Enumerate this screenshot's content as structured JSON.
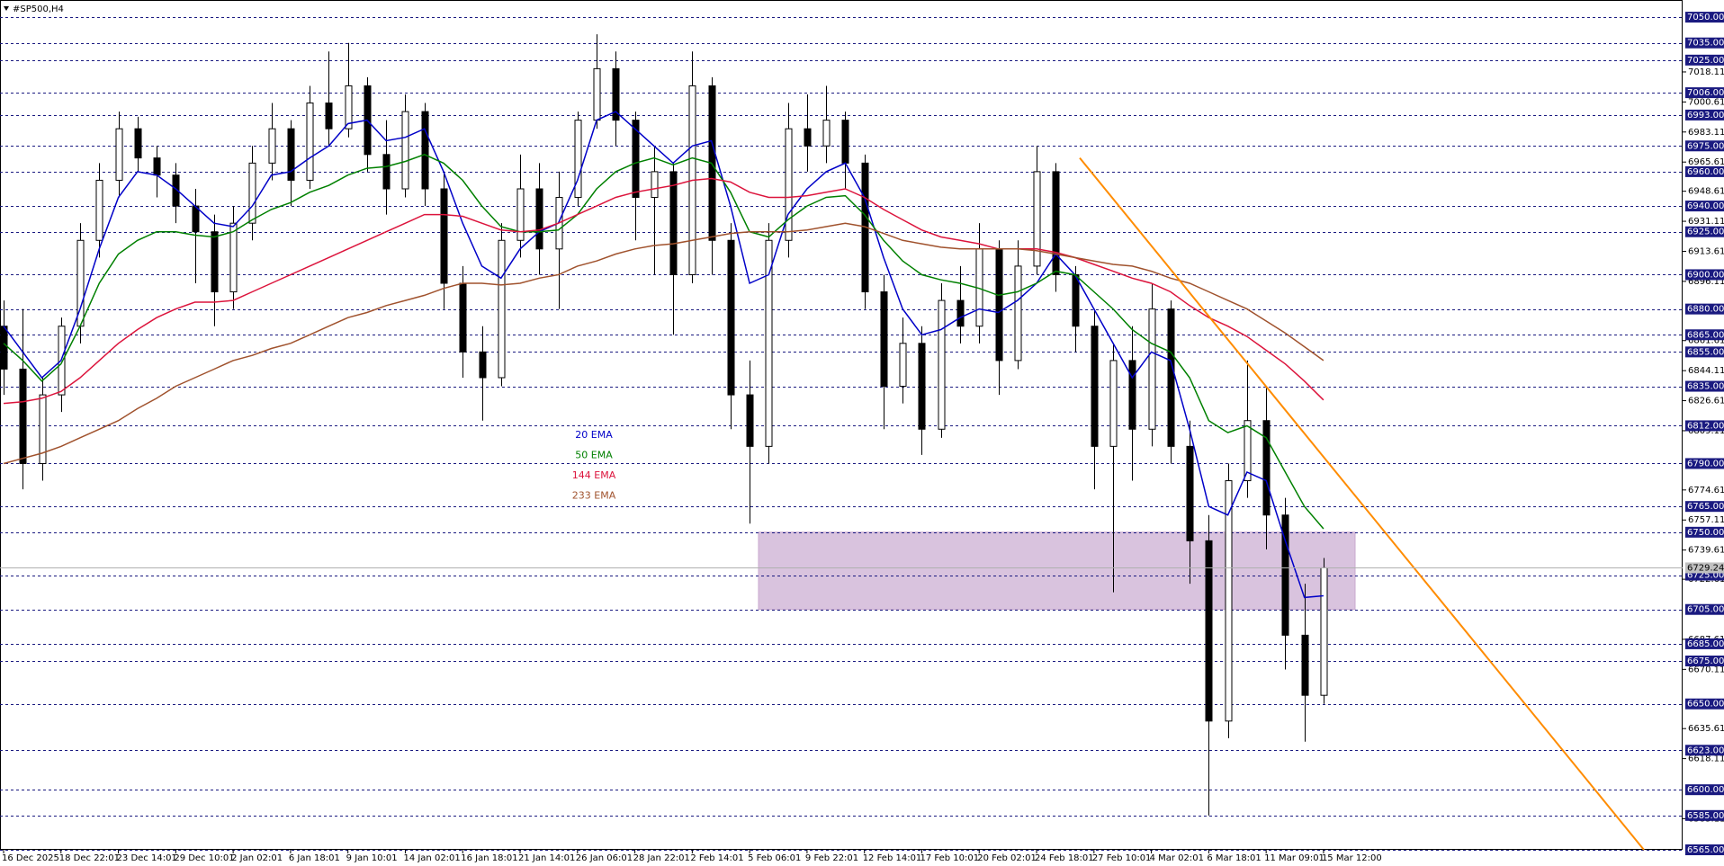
{
  "chart_data": {
    "type": "candlestick",
    "title": "#SP500,H4",
    "categories": [
      "16 Dec 2025",
      null,
      null,
      "18 Dec 22:01",
      null,
      null,
      "23 Dec 14:01",
      null,
      null,
      "29 Dec 10:01",
      null,
      null,
      "2 Jan 02:01",
      null,
      null,
      "6 Jan 18:01",
      null,
      null,
      "9 Jan 10:01",
      null,
      null,
      "14 Jan 02:01",
      null,
      null,
      "16 Jan 18:01",
      null,
      null,
      "21 Jan 14:01",
      null,
      null,
      "26 Jan 06:01",
      null,
      null,
      "28 Jan 22:01",
      null,
      null,
      "2 Feb 14:01",
      null,
      null,
      "5 Feb 06:01",
      null,
      null,
      "9 Feb 22:01",
      null,
      null,
      "12 Feb 14:01",
      null,
      null,
      "17 Feb 10:01",
      null,
      null,
      "20 Feb 02:01",
      null,
      null,
      "24 Feb 18:01",
      null,
      null,
      "27 Feb 10:01",
      null,
      null,
      "4 Mar 02:01",
      null,
      null,
      "6 Mar 18:01",
      null,
      null,
      "11 Mar 09:01",
      null,
      null,
      "15 Mar 12:00"
    ],
    "candles": {
      "open": [
        6870,
        6845,
        6790,
        6830,
        6870,
        6920,
        6955,
        6985,
        6968,
        6958,
        6940,
        6925,
        6890,
        6930,
        6965,
        6985,
        6955,
        7000,
        6985,
        7010,
        6970,
        6950,
        6995,
        6950,
        6895,
        6855,
        6840,
        6920,
        6950,
        6915,
        6945,
        6990,
        7020,
        6990,
        6945,
        6960,
        6900,
        7010,
        6920,
        6830,
        6800,
        6920,
        6985,
        6975,
        6990,
        6965,
        6890,
        6835,
        6860,
        6810,
        6885,
        6870,
        6915,
        6850,
        6905,
        6960,
        6900,
        6870,
        6800,
        6850,
        6810,
        6880,
        6800,
        6745,
        6640,
        6780,
        6815,
        6760,
        6690,
        6655
      ],
      "high": [
        6885,
        6880,
        6840,
        6875,
        6930,
        6965,
        6995,
        6992,
        6975,
        6965,
        6950,
        6935,
        6940,
        6975,
        7000,
        6990,
        7010,
        7030,
        7035,
        7015,
        6990,
        7005,
        7000,
        6960,
        6905,
        6870,
        6930,
        6970,
        6965,
        6960,
        6995,
        7040,
        7030,
        6995,
        6975,
        6965,
        7030,
        7015,
        6930,
        6850,
        6930,
        7000,
        7005,
        7010,
        6995,
        6970,
        6900,
        6875,
        6870,
        6895,
        6905,
        6930,
        6920,
        6920,
        6975,
        6965,
        6905,
        6880,
        6860,
        6870,
        6895,
        6885,
        6815,
        6760,
        6790,
        6850,
        6835,
        6770,
        6720,
        6735
      ],
      "low": [
        6830,
        6775,
        6780,
        6820,
        6860,
        6910,
        6945,
        6960,
        6945,
        6930,
        6895,
        6870,
        6880,
        6920,
        6955,
        6940,
        6950,
        6975,
        6980,
        6960,
        6935,
        6945,
        6940,
        6880,
        6840,
        6815,
        6835,
        6910,
        6900,
        6880,
        6940,
        6985,
        6975,
        6920,
        6900,
        6865,
        6895,
        6900,
        6810,
        6755,
        6790,
        6910,
        6960,
        6965,
        6950,
        6880,
        6810,
        6825,
        6795,
        6805,
        6860,
        6860,
        6830,
        6845,
        6900,
        6890,
        6855,
        6775,
        6715,
        6780,
        6800,
        6790,
        6720,
        6585,
        6630,
        6770,
        6740,
        6670,
        6628,
        6650
      ],
      "close": [
        6845,
        6790,
        6830,
        6870,
        6920,
        6955,
        6985,
        6968,
        6958,
        6940,
        6925,
        6890,
        6930,
        6965,
        6985,
        6955,
        7000,
        6985,
        7010,
        6970,
        6950,
        6995,
        6950,
        6895,
        6855,
        6840,
        6920,
        6950,
        6915,
        6945,
        6990,
        7020,
        6990,
        6945,
        6960,
        6900,
        7010,
        6920,
        6830,
        6800,
        6920,
        6985,
        6975,
        6990,
        6965,
        6890,
        6835,
        6860,
        6810,
        6885,
        6870,
        6915,
        6850,
        6905,
        6960,
        6900,
        6870,
        6800,
        6850,
        6810,
        6880,
        6800,
        6745,
        6640,
        6780,
        6815,
        6760,
        6690,
        6655,
        6729.24
      ]
    },
    "series": [
      {
        "name": "20 EMA",
        "color": "#0000c8",
        "values": [
          6870,
          6855,
          6840,
          6850,
          6880,
          6915,
          6945,
          6960,
          6958,
          6950,
          6940,
          6930,
          6928,
          6940,
          6958,
          6960,
          6968,
          6975,
          6988,
          6990,
          6978,
          6980,
          6985,
          6960,
          6930,
          6905,
          6898,
          6915,
          6925,
          6930,
          6955,
          6990,
          6995,
          6985,
          6975,
          6965,
          6975,
          6978,
          6940,
          6895,
          6900,
          6935,
          6950,
          6960,
          6965,
          6945,
          6910,
          6880,
          6865,
          6868,
          6875,
          6880,
          6878,
          6885,
          6895,
          6912,
          6900,
          6880,
          6860,
          6840,
          6855,
          6850,
          6810,
          6765,
          6760,
          6785,
          6780,
          6745,
          6712,
          6713
        ]
      },
      {
        "name": "50 EMA",
        "color": "#008000",
        "values": [
          6860,
          6850,
          6838,
          6848,
          6870,
          6895,
          6912,
          6920,
          6925,
          6925,
          6923,
          6922,
          6925,
          6932,
          6938,
          6942,
          6948,
          6952,
          6958,
          6962,
          6963,
          6966,
          6970,
          6965,
          6955,
          6940,
          6928,
          6925,
          6925,
          6926,
          6935,
          6950,
          6960,
          6965,
          6968,
          6964,
          6968,
          6965,
          6948,
          6925,
          6922,
          6932,
          6940,
          6945,
          6946,
          6935,
          6920,
          6908,
          6900,
          6897,
          6895,
          6892,
          6888,
          6890,
          6895,
          6902,
          6900,
          6890,
          6880,
          6868,
          6860,
          6855,
          6840,
          6815,
          6808,
          6812,
          6805,
          6785,
          6765,
          6752
        ]
      },
      {
        "name": "144 EMA",
        "color": "#dc143c",
        "values": [
          6825,
          6826,
          6828,
          6832,
          6840,
          6850,
          6860,
          6868,
          6875,
          6880,
          6884,
          6884,
          6885,
          6890,
          6895,
          6900,
          6905,
          6910,
          6915,
          6920,
          6925,
          6930,
          6935,
          6935,
          6934,
          6930,
          6926,
          6925,
          6926,
          6930,
          6935,
          6940,
          6945,
          6948,
          6950,
          6952,
          6955,
          6956,
          6954,
          6948,
          6945,
          6945,
          6946,
          6948,
          6950,
          6945,
          6938,
          6932,
          6926,
          6922,
          6920,
          6918,
          6915,
          6915,
          6915,
          6913,
          6910,
          6906,
          6902,
          6898,
          6895,
          6890,
          6882,
          6875,
          6870,
          6864,
          6856,
          6848,
          6838,
          6827
        ]
      },
      {
        "name": "233 EMA",
        "color": "#a0522d",
        "values": [
          6790,
          6793,
          6796,
          6800,
          6805,
          6810,
          6815,
          6822,
          6828,
          6835,
          6840,
          6845,
          6850,
          6853,
          6857,
          6860,
          6865,
          6870,
          6875,
          6878,
          6882,
          6885,
          6888,
          6892,
          6895,
          6895,
          6894,
          6895,
          6898,
          6900,
          6905,
          6908,
          6912,
          6915,
          6917,
          6918,
          6920,
          6922,
          6924,
          6925,
          6925,
          6925,
          6926,
          6928,
          6930,
          6928,
          6924,
          6920,
          6918,
          6916,
          6915,
          6915,
          6915,
          6915,
          6914,
          6912,
          6910,
          6908,
          6906,
          6905,
          6902,
          6898,
          6895,
          6890,
          6885,
          6880,
          6873,
          6866,
          6858,
          6850
        ]
      }
    ],
    "ylim": [
      6565,
      7060
    ],
    "yticks": [
      7018.11,
      7000.61,
      6983.11,
      6965.61,
      6948.61,
      6931.11,
      6913.61,
      6896.11,
      6861.61,
      6844.11,
      6826.61,
      6809.11,
      6774.61,
      6757.11,
      6739.61,
      6722.61,
      6687.61,
      6670.11,
      6635.61,
      6618.11,
      6583.11
    ],
    "levels": [
      {
        "value": 7050,
        "label": "7050.00"
      },
      {
        "value": 7035,
        "label": "7035.00"
      },
      {
        "value": 7025,
        "label": "7025.00"
      },
      {
        "value": 7006,
        "label": "7006.00"
      },
      {
        "value": 6993,
        "label": "6993.00"
      },
      {
        "value": 6975,
        "label": "6975.00"
      },
      {
        "value": 6960,
        "label": "6960.00"
      },
      {
        "value": 6940,
        "label": "6940.00"
      },
      {
        "value": 6925,
        "label": "6925.00"
      },
      {
        "value": 6900,
        "label": "6900.00"
      },
      {
        "value": 6880,
        "label": "6880.00"
      },
      {
        "value": 6865,
        "label": "6865.00"
      },
      {
        "value": 6855,
        "label": "6855.00"
      },
      {
        "value": 6835,
        "label": "6835.00"
      },
      {
        "value": 6812,
        "label": "6812.00"
      },
      {
        "value": 6790,
        "label": "6790.00"
      },
      {
        "value": 6765,
        "label": "6765.00"
      },
      {
        "value": 6750,
        "label": "6750.00"
      },
      {
        "value": 6725,
        "label": "6725.00"
      },
      {
        "value": 6705,
        "label": "6705.00"
      },
      {
        "value": 6685,
        "label": "6685.00"
      },
      {
        "value": 6675,
        "label": "6675.00"
      },
      {
        "value": 6650,
        "label": "6650.00"
      },
      {
        "value": 6623,
        "label": "6623.00"
      },
      {
        "value": 6600,
        "label": "6600.00"
      },
      {
        "value": 6585,
        "label": "6585.00"
      },
      {
        "value": 6565,
        "label": "6565.00"
      }
    ],
    "level_color": "#1a1a80",
    "zone": {
      "from": 6705,
      "to": 6750,
      "color": "#d9c3de"
    },
    "trendline": {
      "start": 6968,
      "end": 6565,
      "color": "#ff8c00"
    },
    "candle_color": "#000000"
  }
}
